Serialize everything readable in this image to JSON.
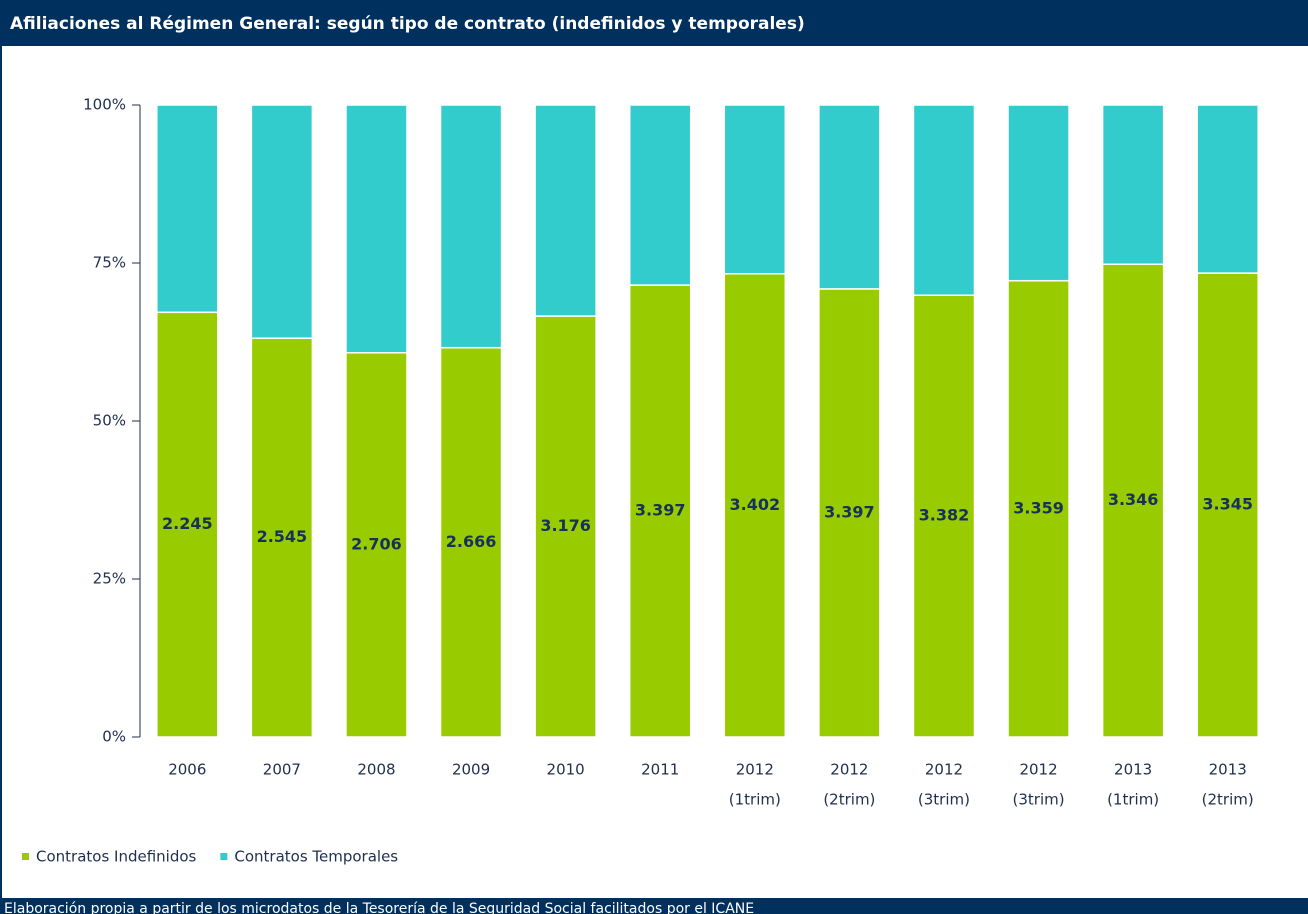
{
  "chart_data": {
    "type": "stacked_bar",
    "title": "Afiliaciones al Régimen General: según tipo de contrato (indefinidos y temporales)",
    "footer": "Elaboración propia a partir de los microdatos de la Tesorería de la Seguridad Social facilitados por el ICANE",
    "categories": [
      [
        "2006"
      ],
      [
        "2007"
      ],
      [
        "2008"
      ],
      [
        "2009"
      ],
      [
        "2010"
      ],
      [
        "2011"
      ],
      [
        "2012",
        "(1trim)"
      ],
      [
        "2012",
        "(2trim)"
      ],
      [
        "2012",
        "(3trim)"
      ],
      [
        "2012",
        "(3trim)"
      ],
      [
        "2013",
        "(1trim)"
      ],
      [
        "2013",
        "(2trim)"
      ]
    ],
    "series": [
      {
        "name": "Contratos Indefinidos",
        "color": "#99cc00",
        "values": [
          67.2,
          63.1,
          60.8,
          61.6,
          66.6,
          71.5,
          73.3,
          70.9,
          69.9,
          72.2,
          74.8,
          73.4
        ]
      },
      {
        "name": "Contratos Temporales",
        "color": "#33cccc",
        "values": [
          32.8,
          36.9,
          39.2,
          38.4,
          33.4,
          28.5,
          26.7,
          29.1,
          30.1,
          27.8,
          25.2,
          26.6
        ]
      }
    ],
    "annotations": [
      "2.245",
      "2.545",
      "2.706",
      "2.666",
      "3.176",
      "3.397",
      "3.402",
      "3.397",
      "3.382",
      "3.359",
      "3.346",
      "3.345"
    ],
    "ylim": [
      0,
      100
    ],
    "yticks": [
      {
        "value": 0,
        "label": "0%"
      },
      {
        "value": 25,
        "label": "25%"
      },
      {
        "value": 50,
        "label": "50%"
      },
      {
        "value": 75,
        "label": "75%"
      },
      {
        "value": 100,
        "label": "100%"
      }
    ],
    "legend": "bottom-left"
  }
}
